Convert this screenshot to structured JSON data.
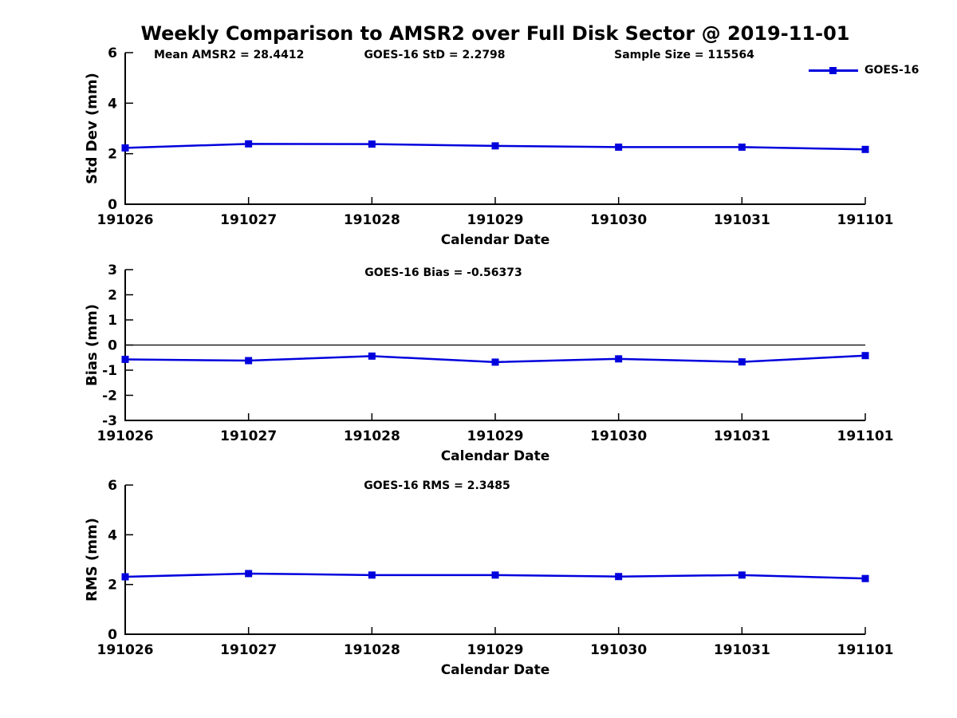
{
  "title": "Weekly Comparison to AMSR2 over Full Disk Sector @ 2019-11-01",
  "legend": {
    "label": "GOES-16"
  },
  "colors": {
    "series": "#0000dd",
    "axis": "#000000",
    "zero_line": "#000000",
    "background": "#ffffff"
  },
  "chart_data": [
    {
      "type": "line",
      "name": "std-dev",
      "categories": [
        "191026",
        "191027",
        "191028",
        "191029",
        "191030",
        "191031",
        "191101"
      ],
      "series": [
        {
          "name": "GOES-16",
          "values": [
            2.23,
            2.39,
            2.38,
            2.31,
            2.26,
            2.26,
            2.17
          ]
        }
      ],
      "ylabel": "Std Dev (mm)",
      "xlabel": "Calendar Date",
      "ylim": [
        0,
        6
      ],
      "yticks": [
        0,
        2,
        4,
        6
      ],
      "grid": false,
      "zero_line": false,
      "legend_position": "top-right",
      "annotations": [
        "Mean AMSR2 = 28.4412",
        "GOES-16 StD = 2.2798",
        "Sample Size = 115564"
      ]
    },
    {
      "type": "line",
      "name": "bias",
      "categories": [
        "191026",
        "191027",
        "191028",
        "191029",
        "191030",
        "191031",
        "191101"
      ],
      "series": [
        {
          "name": "GOES-16",
          "values": [
            -0.57,
            -0.62,
            -0.44,
            -0.68,
            -0.55,
            -0.67,
            -0.42
          ]
        }
      ],
      "ylabel": "Bias (mm)",
      "xlabel": "Calendar Date",
      "ylim": [
        -3,
        3
      ],
      "yticks": [
        -3,
        -2,
        -1,
        0,
        1,
        2,
        3
      ],
      "grid": false,
      "zero_line": true,
      "annotations": [
        "GOES-16 Bias  = -0.56373"
      ]
    },
    {
      "type": "line",
      "name": "rms",
      "categories": [
        "191026",
        "191027",
        "191028",
        "191029",
        "191030",
        "191031",
        "191101"
      ],
      "series": [
        {
          "name": "GOES-16",
          "values": [
            2.31,
            2.44,
            2.38,
            2.38,
            2.32,
            2.38,
            2.24
          ]
        }
      ],
      "ylabel": "RMS (mm)",
      "xlabel": "Calendar Date",
      "ylim": [
        0,
        6
      ],
      "yticks": [
        0,
        2,
        4,
        6
      ],
      "grid": false,
      "zero_line": false,
      "annotations": [
        "GOES-16 RMS = 2.3485"
      ]
    }
  ]
}
